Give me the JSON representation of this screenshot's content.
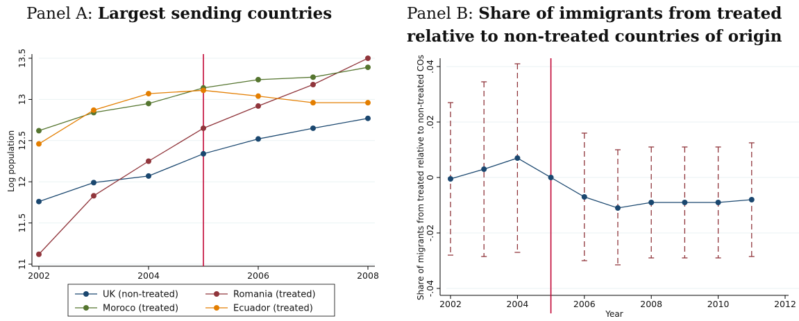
{
  "panel_a": {
    "title_prefix": "Panel A: ",
    "title_bold": "Largest sending countries"
  },
  "panel_b": {
    "title_prefix": "Panel B: ",
    "title_bold_line1": "Share of immigrants from treated",
    "title_bold_line2": "relative to non-treated countries of origin"
  },
  "chart_data": [
    {
      "type": "line",
      "title": "Panel A: Largest sending countries",
      "xlabel": "",
      "ylabel": "Log population",
      "xlim": [
        2002,
        2008
      ],
      "ylim": [
        11,
        13.5
      ],
      "x": [
        2002,
        2003,
        2004,
        2005,
        2006,
        2007,
        2008
      ],
      "xticks": [
        "2002",
        "2004",
        "2006",
        "2008"
      ],
      "yticks": [
        "11",
        "11.5",
        "12",
        "12.5",
        "13",
        "13.5"
      ],
      "xtick_values": [
        2002,
        2004,
        2006,
        2008
      ],
      "ytick_values": [
        11,
        11.5,
        12,
        12.5,
        13,
        13.5
      ],
      "vline": 2005,
      "grid": true,
      "legend_position": "bottom",
      "series": [
        {
          "name": "UK (non-treated)",
          "color": "#1a476f",
          "values": [
            11.76,
            11.99,
            12.07,
            12.34,
            12.52,
            12.65,
            12.77
          ]
        },
        {
          "name": "Romania (treated)",
          "color": "#90353b",
          "values": [
            11.12,
            11.83,
            12.25,
            12.65,
            12.92,
            13.18,
            13.5
          ]
        },
        {
          "name": "Moroco (treated)",
          "color": "#55752f",
          "values": [
            12.62,
            12.84,
            12.95,
            13.14,
            13.24,
            13.27,
            13.39
          ]
        },
        {
          "name": "Ecuador (treated)",
          "color": "#e37e00",
          "values": [
            12.46,
            12.87,
            13.07,
            13.11,
            13.04,
            12.96,
            12.96
          ]
        }
      ]
    },
    {
      "type": "scatter",
      "title": "Panel B: Share of immigrants from treated relative to non-treated countries of origin",
      "xlabel": "Year",
      "ylabel": "Share of migrants from treated relative to non-treated COs",
      "xlim": [
        2002,
        2012
      ],
      "ylim": [
        -0.042,
        0.042
      ],
      "x": [
        2002,
        2003,
        2004,
        2005,
        2006,
        2007,
        2008,
        2009,
        2010,
        2011
      ],
      "xticks": [
        "2002",
        "2004",
        "2006",
        "2008",
        "2010",
        "2012"
      ],
      "yticks": [
        "-.04",
        "-.02",
        "0",
        ".02",
        ".04"
      ],
      "xtick_values": [
        2002,
        2004,
        2006,
        2008,
        2010,
        2012
      ],
      "ytick_values": [
        -0.04,
        -0.02,
        0,
        0.02,
        0.04
      ],
      "vline": 2005,
      "grid": true,
      "series": [
        {
          "color": "#1a476f",
          "values": [
            -0.0005,
            0.003,
            0.007,
            0.0,
            -0.007,
            -0.011,
            -0.009,
            -0.009,
            -0.009,
            -0.008
          ],
          "ci_low": [
            -0.028,
            -0.0285,
            -0.027,
            null,
            -0.03,
            -0.0315,
            -0.029,
            -0.029,
            -0.029,
            -0.0285
          ],
          "ci_high": [
            0.027,
            0.0345,
            0.041,
            null,
            0.016,
            0.01,
            0.011,
            0.011,
            0.011,
            0.0125
          ],
          "ci_color": "#90353b"
        }
      ]
    }
  ]
}
